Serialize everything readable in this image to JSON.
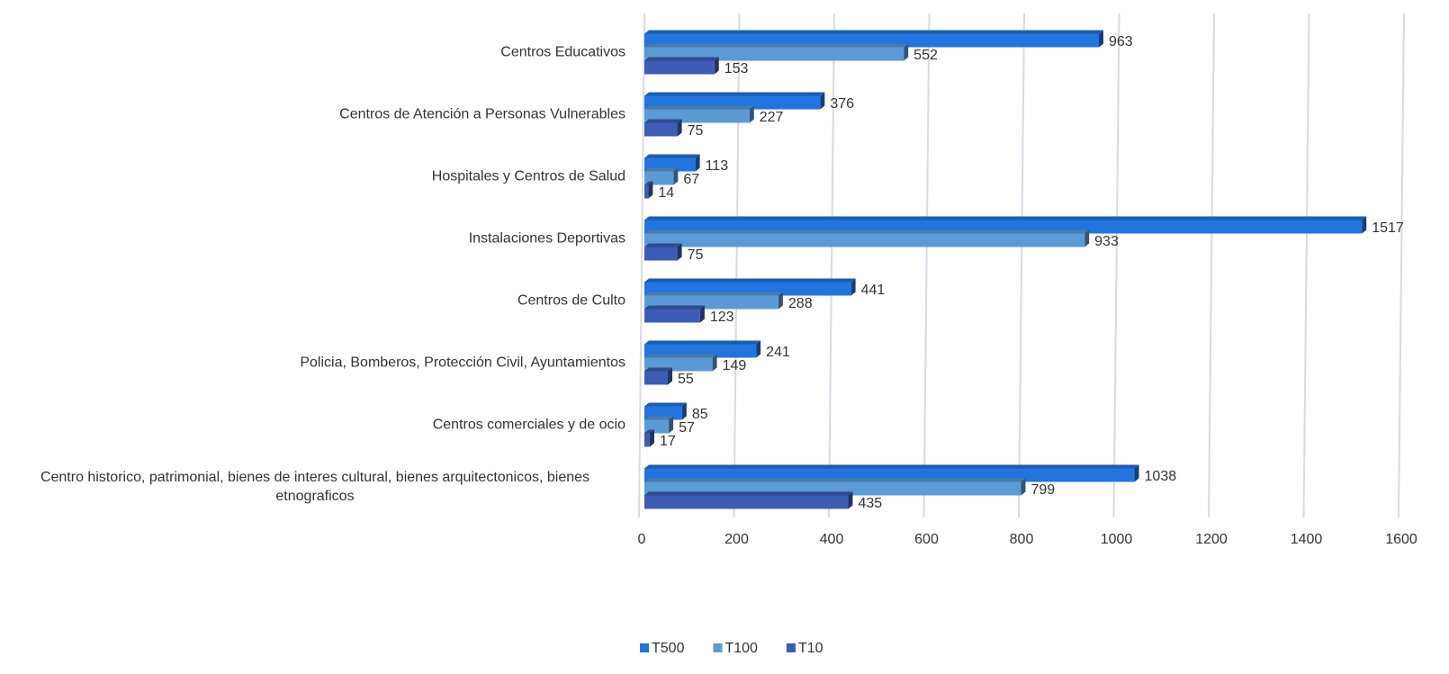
{
  "chart_data": {
    "type": "bar",
    "orientation": "horizontal",
    "categories": [
      "Centros Educativos",
      "Centros de Atención a Personas Vulnerables",
      "Hospitales y Centros de Salud",
      "Instalaciones Deportivas",
      "Centros de Culto",
      "Policia, Bomberos, Protección Civil, Ayuntamientos",
      "Centros comerciales y de ocio",
      "Centro historico, patrimonial, bienes de interes cultural, bienes arquitectonicos, bienes etnograficos"
    ],
    "series": [
      {
        "name": "T500",
        "color": "#2274df",
        "values": [
          963,
          376,
          113,
          1517,
          441,
          241,
          85,
          1038
        ]
      },
      {
        "name": "T100",
        "color": "#5b9bd5",
        "values": [
          552,
          227,
          67,
          933,
          288,
          149,
          57,
          799
        ]
      },
      {
        "name": "T10",
        "color": "#3d5cb4",
        "values": [
          153,
          75,
          14,
          75,
          123,
          55,
          17,
          435
        ]
      }
    ],
    "xlim": [
      0,
      1600
    ],
    "xticks": [
      0,
      200,
      400,
      600,
      800,
      1000,
      1200,
      1400,
      1600
    ],
    "grid": true,
    "legend": "bottom"
  }
}
